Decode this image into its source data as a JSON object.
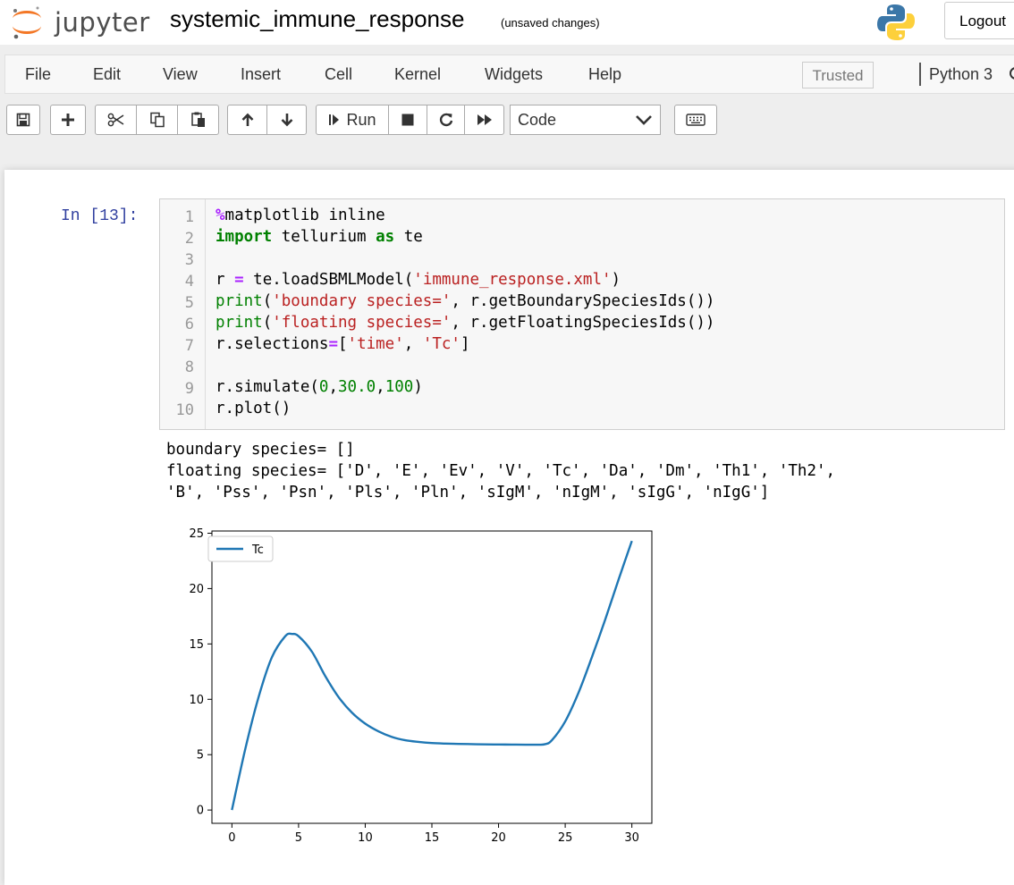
{
  "header": {
    "logo_text": "jupyter",
    "notebook_title": "systemic_immune_response",
    "save_status": "(unsaved changes)",
    "logout_label": "Logout"
  },
  "menubar": {
    "items": [
      "File",
      "Edit",
      "View",
      "Insert",
      "Cell",
      "Kernel",
      "Widgets",
      "Help"
    ],
    "trusted_label": "Trusted",
    "kernel_name": "Python 3"
  },
  "toolbar": {
    "run_label": "Run",
    "cell_type": "Code",
    "icons": [
      "save-icon",
      "plus-icon",
      "cut-icon",
      "copy-icon",
      "paste-icon",
      "arrow-up-icon",
      "arrow-down-icon",
      "step-forward-icon",
      "stop-icon",
      "restart-icon",
      "fast-forward-icon",
      "keyboard-icon"
    ]
  },
  "cell": {
    "prompt": "In [13]:",
    "line_numbers": [
      "1",
      "2",
      "3",
      "4",
      "5",
      "6",
      "7",
      "8",
      "9",
      "10"
    ],
    "code": [
      [
        {
          "t": "%",
          "c": "mg"
        },
        {
          "t": "matplotlib inline",
          "c": ""
        }
      ],
      [
        {
          "t": "import",
          "c": "kw"
        },
        {
          "t": " tellurium ",
          "c": ""
        },
        {
          "t": "as",
          "c": "kw"
        },
        {
          "t": " te",
          "c": ""
        }
      ],
      [],
      [
        {
          "t": "r ",
          "c": ""
        },
        {
          "t": "=",
          "c": "mg"
        },
        {
          "t": " te.loadSBMLModel(",
          "c": ""
        },
        {
          "t": "'immune_response.xml'",
          "c": "st"
        },
        {
          "t": ")",
          "c": ""
        }
      ],
      [
        {
          "t": "print",
          "c": "bi"
        },
        {
          "t": "(",
          "c": ""
        },
        {
          "t": "'boundary species='",
          "c": "st"
        },
        {
          "t": ", r.getBoundarySpeciesIds())",
          "c": ""
        }
      ],
      [
        {
          "t": "print",
          "c": "bi"
        },
        {
          "t": "(",
          "c": ""
        },
        {
          "t": "'floating species='",
          "c": "st"
        },
        {
          "t": ", r.getFloatingSpeciesIds())",
          "c": ""
        }
      ],
      [
        {
          "t": "r.selections",
          "c": ""
        },
        {
          "t": "=",
          "c": "mg"
        },
        {
          "t": "[",
          "c": ""
        },
        {
          "t": "'time'",
          "c": "st"
        },
        {
          "t": ", ",
          "c": ""
        },
        {
          "t": "'Tc'",
          "c": "st"
        },
        {
          "t": "]",
          "c": ""
        }
      ],
      [],
      [
        {
          "t": "r.simulate(",
          "c": ""
        },
        {
          "t": "0",
          "c": "nm"
        },
        {
          "t": ",",
          "c": ""
        },
        {
          "t": "30.0",
          "c": "nm"
        },
        {
          "t": ",",
          "c": ""
        },
        {
          "t": "100",
          "c": "nm"
        },
        {
          "t": ")",
          "c": ""
        }
      ],
      [
        {
          "t": "r.plot()",
          "c": ""
        }
      ]
    ],
    "output_lines": [
      "boundary species= []",
      "floating species= ['D', 'E', 'Ev', 'V', 'Tc', 'Da', 'Dm', 'Th1', 'Th2',",
      "'B', 'Pss', 'Psn', 'Pls', 'Pln', 'sIgM', 'nIgM', 'sIgG', 'nIgG']"
    ]
  },
  "chart_data": {
    "type": "line",
    "title": "",
    "xlabel": "",
    "ylabel": "",
    "xlim": [
      -1.5,
      31.5
    ],
    "ylim": [
      -1.2,
      25.2
    ],
    "xticks": [
      0,
      5,
      10,
      15,
      20,
      25,
      30
    ],
    "yticks": [
      0,
      5,
      10,
      15,
      20,
      25
    ],
    "legend_position": "upper-left",
    "grid": false,
    "series": [
      {
        "name": "Tc",
        "color": "#1f77b4",
        "x": [
          0,
          1,
          2,
          3,
          4,
          4.5,
          5,
          6,
          7,
          8,
          9,
          10,
          11,
          12,
          13,
          14,
          15,
          16,
          17,
          18,
          19,
          20,
          21,
          22,
          23,
          23.5,
          24,
          25,
          26,
          27,
          28,
          29,
          30
        ],
        "y": [
          0,
          5.5,
          10.2,
          13.8,
          15.7,
          15.9,
          15.7,
          14.3,
          12.1,
          10.2,
          8.8,
          7.8,
          7.1,
          6.6,
          6.3,
          6.15,
          6.05,
          6.0,
          5.97,
          5.95,
          5.93,
          5.92,
          5.91,
          5.9,
          5.9,
          5.95,
          6.3,
          8.0,
          10.6,
          13.8,
          17.2,
          20.8,
          24.3
        ]
      }
    ]
  }
}
